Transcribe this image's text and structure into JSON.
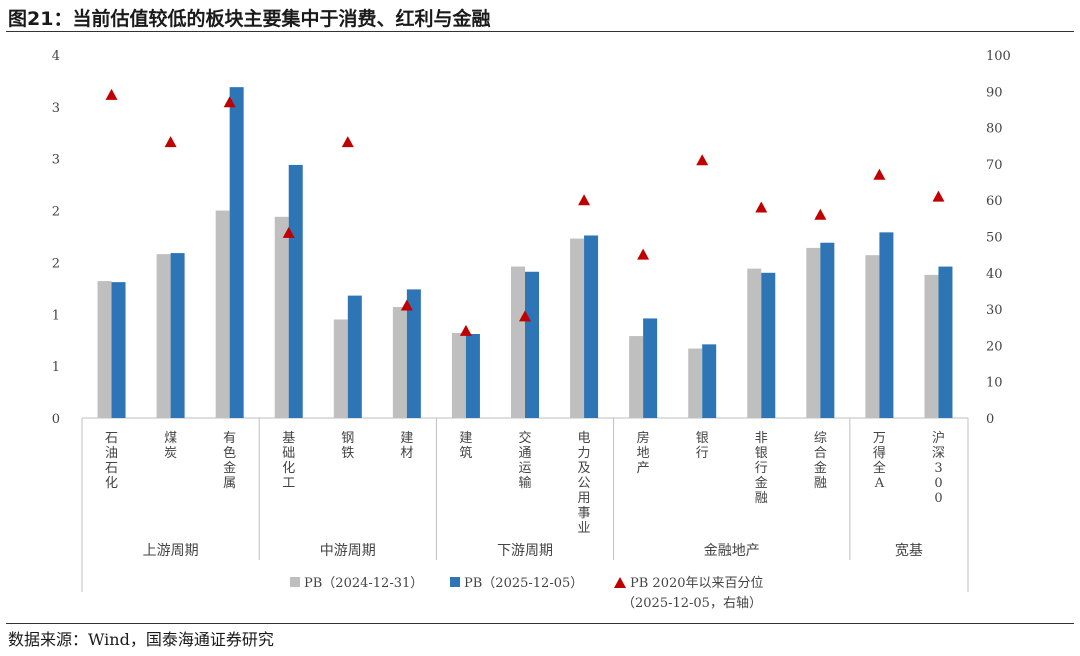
{
  "figure": {
    "title": "图21：当前估值较低的板块主要集中于消费、红利与金融",
    "source": "数据来源：Wind，国泰海通证券研究"
  },
  "colors": {
    "pb_2024": "#bfbfbf",
    "pb_2025": "#2e75b6",
    "percentile": "#c00000"
  },
  "chart_data": {
    "type": "bar",
    "categories": [
      "石油石化",
      "煤炭",
      "有色金属",
      "基础化工",
      "钢铁",
      "建材",
      "建筑",
      "交通运输",
      "电力及公用事业",
      "房地产",
      "银行",
      "非银行金融",
      "综合金融",
      "万得全A",
      "沪深300"
    ],
    "groups": [
      {
        "label": "上游周期",
        "count": 3
      },
      {
        "label": "中游周期",
        "count": 3
      },
      {
        "label": "下游周期",
        "count": 3
      },
      {
        "label": "金融地产",
        "count": 4
      },
      {
        "label": "宽基",
        "count": 2
      }
    ],
    "series": [
      {
        "name": "PB（2024-12-31）",
        "type": "bar",
        "axis": "left",
        "values": [
          1.32,
          1.58,
          2.0,
          1.94,
          0.95,
          1.07,
          0.82,
          1.46,
          1.73,
          0.79,
          0.67,
          1.44,
          1.64,
          1.57,
          1.38
        ]
      },
      {
        "name": "PB（2025-12-05）",
        "type": "bar",
        "axis": "left",
        "values": [
          1.31,
          1.59,
          3.19,
          2.44,
          1.18,
          1.24,
          0.81,
          1.41,
          1.76,
          0.96,
          0.71,
          1.4,
          1.69,
          1.79,
          1.46
        ]
      },
      {
        "name": "PB 2020年以来百分位",
        "type": "scatter",
        "axis": "right",
        "marker": "triangle",
        "values": [
          89,
          76,
          87,
          51,
          76,
          31,
          24,
          28,
          60,
          45,
          71,
          58,
          56,
          67,
          61
        ]
      }
    ],
    "legend": {
      "items": [
        "PB（2024-12-31）",
        "PB（2025-12-05）",
        "PB 2020年以来百分位"
      ],
      "note": "（2025-12-05，右轴）",
      "position": "bottom"
    },
    "y_left": {
      "ticks": [
        "0",
        "1",
        "1",
        "2",
        "2",
        "3",
        "3",
        "4"
      ],
      "ylim": [
        0,
        3.5
      ]
    },
    "y_right": {
      "ticks": [
        "0",
        "10",
        "20",
        "30",
        "40",
        "50",
        "60",
        "70",
        "80",
        "90",
        "100"
      ],
      "ylim": [
        0,
        100
      ]
    },
    "grid": false
  }
}
